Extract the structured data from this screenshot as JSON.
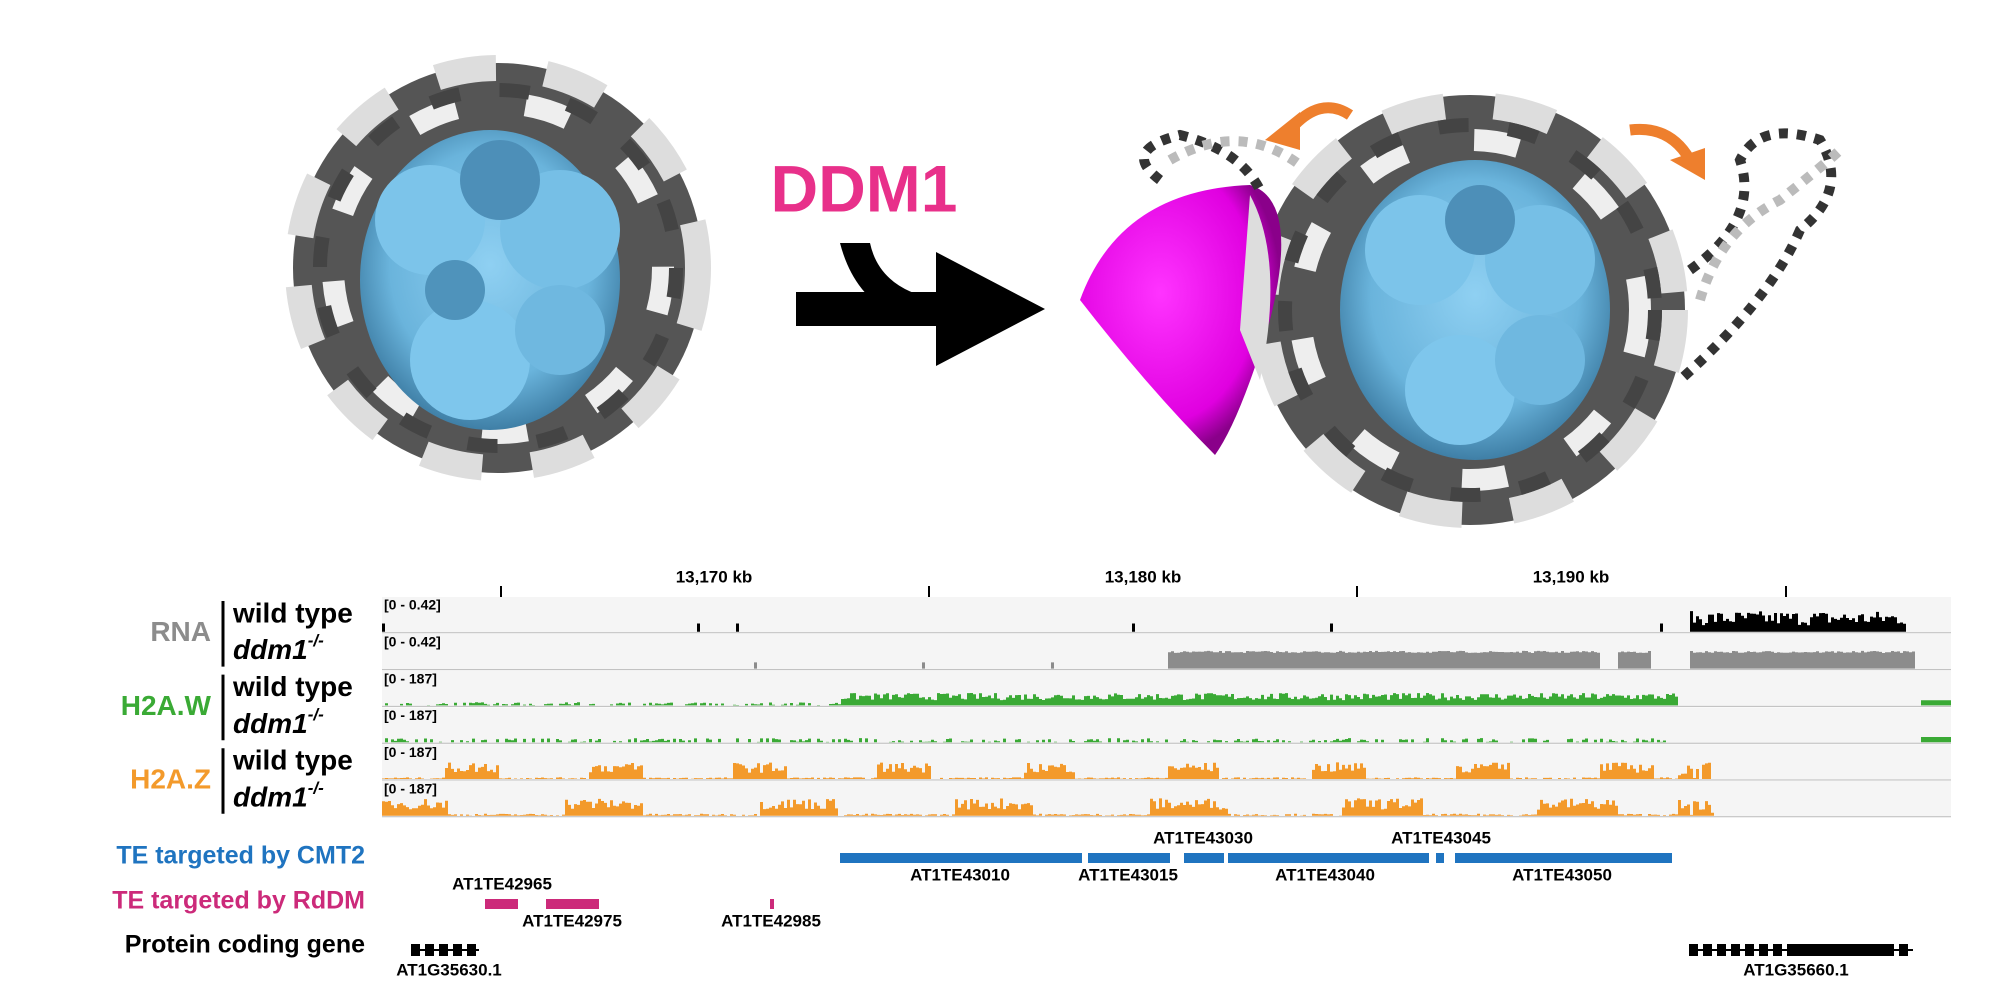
{
  "title": "DDM1",
  "ruler": {
    "ticks": [
      "13,170 kb",
      "13,180 kb",
      "13,190 kb"
    ]
  },
  "tracks": [
    {
      "group": "RNA",
      "rows": [
        {
          "sample": "wild type",
          "range": "[0 - 0.42]"
        },
        {
          "sample": "ddm1",
          "superscript": "-/-",
          "range": "[0 - 0.42]"
        }
      ]
    },
    {
      "group": "H2A.W",
      "rows": [
        {
          "sample": "wild type",
          "range": "[0 - 187]"
        },
        {
          "sample": "ddm1",
          "superscript": "-/-",
          "range": "[0 - 187]"
        }
      ]
    },
    {
      "group": "H2A.Z",
      "rows": [
        {
          "sample": "wild type",
          "range": "[0 - 187]"
        },
        {
          "sample": "ddm1",
          "superscript": "-/-",
          "range": "[0 - 187]"
        }
      ]
    }
  ],
  "features": [
    {
      "label": "TE targeted by CMT2",
      "items": [
        "AT1TE43010",
        "AT1TE43015",
        "AT1TE43030",
        "AT1TE43040",
        "AT1TE43045",
        "AT1TE43050"
      ]
    },
    {
      "label": "TE targeted by RdDM",
      "items": [
        "AT1TE42965",
        "AT1TE42975",
        "AT1TE42985"
      ]
    },
    {
      "label": "Protein coding gene",
      "items": [
        "AT1G35630.1",
        "AT1G35660.1"
      ]
    }
  ]
}
